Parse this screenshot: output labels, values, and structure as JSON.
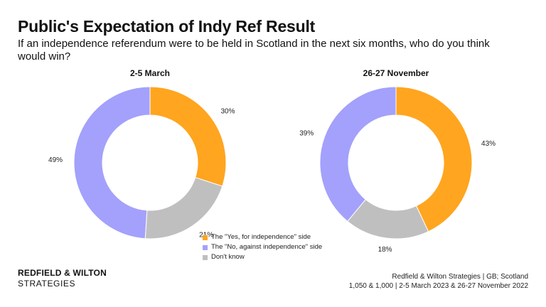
{
  "header": {
    "title": "Public's Expectation of Indy Ref Result",
    "subtitle": "If an independence referendum were to be held in Scotland in the next six months, who do you think would win?"
  },
  "chart_data": {
    "type": "pie",
    "variant": "donut",
    "series_names": [
      "The \"Yes, for independence\" side",
      "The \"No, against independence\" side",
      "Don't know"
    ],
    "colors": [
      "#FFA51F",
      "#A3A1FB",
      "#C0BFC0"
    ],
    "legend_position": "bottom-center",
    "charts": [
      {
        "title": "2-5 March",
        "values": [
          30,
          21,
          49
        ],
        "labels": [
          "30%",
          "21%",
          "49%"
        ],
        "order": [
          "The \"Yes, for independence\" side",
          "Don't know",
          "The \"No, against independence\" side"
        ]
      },
      {
        "title": "26-27 November",
        "values": [
          43,
          18,
          39
        ],
        "labels": [
          "43%",
          "18%",
          "39%"
        ],
        "order": [
          "The \"Yes, for independence\" side",
          "Don't know",
          "The \"No, against independence\" side"
        ]
      }
    ]
  },
  "legend": {
    "items": [
      {
        "label": "The \"Yes, for independence\" side",
        "color": "#FFA51F"
      },
      {
        "label": "The \"No, against independence\" side",
        "color": "#A3A1FB"
      },
      {
        "label": "Don't know",
        "color": "#C0BFC0"
      }
    ]
  },
  "branding": {
    "line1": "REDFIELD & WILTON",
    "line2": "STRATEGIES"
  },
  "source": {
    "line1": "Redfield & Wilton Strategies | GB; Scotland",
    "line2": "1,050 & 1,000 | 2-5 March 2023 & 26-27 November 2022"
  }
}
